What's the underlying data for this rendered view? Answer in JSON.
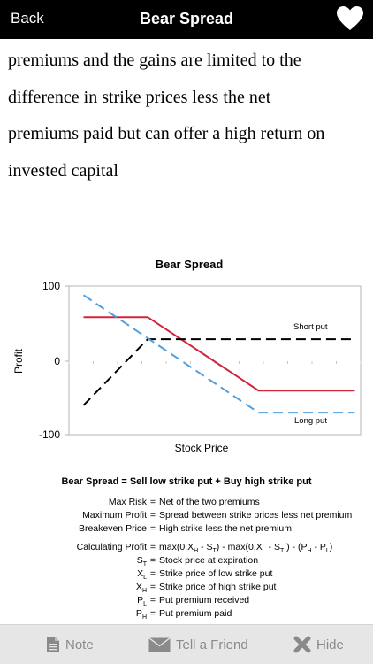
{
  "nav": {
    "back_label": "Back",
    "title": "Bear Spread",
    "favorite_icon": "heart-icon"
  },
  "body_lines": [
    "premiums and the gains are limited to the",
    "difference in strike prices less the net",
    "premiums paid but can offer a high return on",
    "invested capital"
  ],
  "chart_data": {
    "type": "line",
    "title": "Bear Spread",
    "xlabel": "Stock Price",
    "ylabel": "Profit",
    "ylim": [
      -100,
      100
    ],
    "xlim": [
      0,
      100
    ],
    "yticks": [
      "100",
      "0",
      "-100"
    ],
    "grid": false,
    "series": [
      {
        "name": "",
        "color": "#d0263a",
        "style": "solid",
        "x": [
          5,
          27,
          65,
          98
        ],
        "y": [
          60,
          60,
          -40,
          -40
        ]
      },
      {
        "name": "Short put",
        "color": "#000000",
        "style": "dashed",
        "x": [
          5,
          27,
          98
        ],
        "y": [
          -60,
          30,
          30
        ]
      },
      {
        "name": "Long put",
        "color": "#4f9fe0",
        "style": "dashed",
        "x": [
          5,
          65,
          98
        ],
        "y": [
          90,
          -70,
          -70
        ]
      }
    ],
    "annotations": [
      "Short put",
      "Long put"
    ]
  },
  "formula": {
    "title": "Bear Spread = Sell low strike put + Buy high strike put",
    "definitions": [
      {
        "label": "Max Risk",
        "value": "Net of the two premiums"
      },
      {
        "label": "Maximum Profit",
        "value": "Spread between strike prices less net premium"
      },
      {
        "label": "Breakeven Price",
        "value": "High strike less the net premium"
      }
    ],
    "calc_label": "Calculating Profit",
    "variables": [
      {
        "symbol": "S",
        "sub": "T",
        "value": "Stock price at expiration"
      },
      {
        "symbol": "X",
        "sub": "L",
        "value": "Strike price of low strike put"
      },
      {
        "symbol": "X",
        "sub": "H",
        "value": "Strike price of high strike put"
      },
      {
        "symbol": "P",
        "sub": "L",
        "value": "Put premium received"
      },
      {
        "symbol": "P",
        "sub": "H",
        "value": "Put premium paid"
      }
    ]
  },
  "toolbar": {
    "note_label": "Note",
    "tell_label": "Tell a Friend",
    "hide_label": "Hide",
    "color": "#8a8a8a"
  }
}
